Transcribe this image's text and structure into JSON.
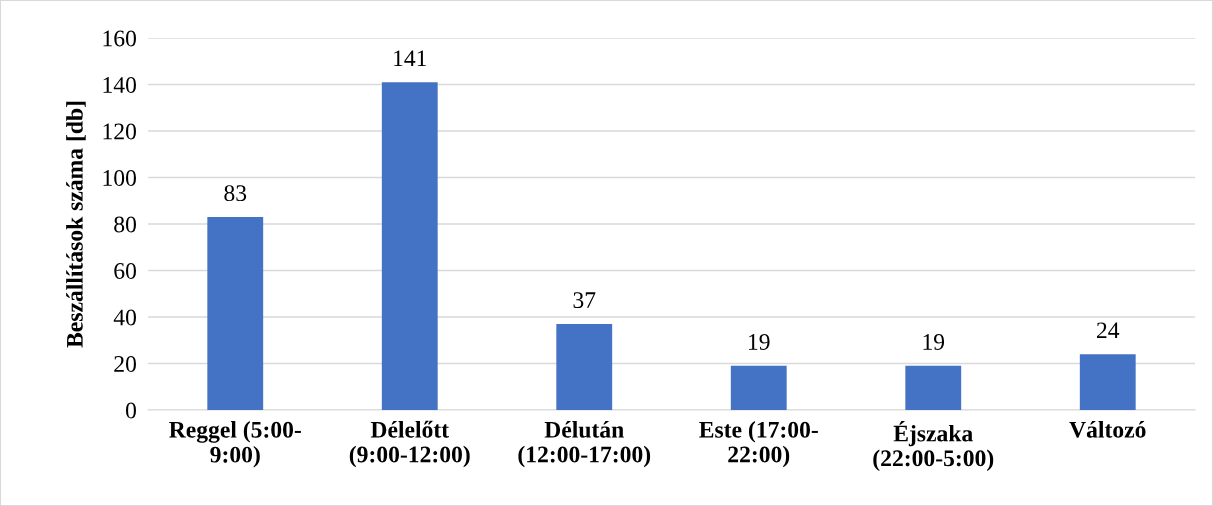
{
  "chart_data": {
    "type": "bar",
    "ylabel": "Beszállítások száma [db]",
    "categories": [
      "Reggel (5:00-\n9:00)",
      "Délelőtt\n(9:00-12:00)",
      "Délután\n(12:00-17:00)",
      "Este (17:00-\n22:00)",
      "Éjszaka\n(22:00-5:00)",
      "Változó"
    ],
    "values": [
      83,
      141,
      37,
      19,
      19,
      24
    ],
    "color": "#4472c4",
    "ylim": [
      0,
      160
    ],
    "yticks": [
      0,
      20,
      40,
      60,
      80,
      100,
      120,
      140,
      160
    ],
    "grid": "y",
    "data_labels": true,
    "legend": false
  }
}
